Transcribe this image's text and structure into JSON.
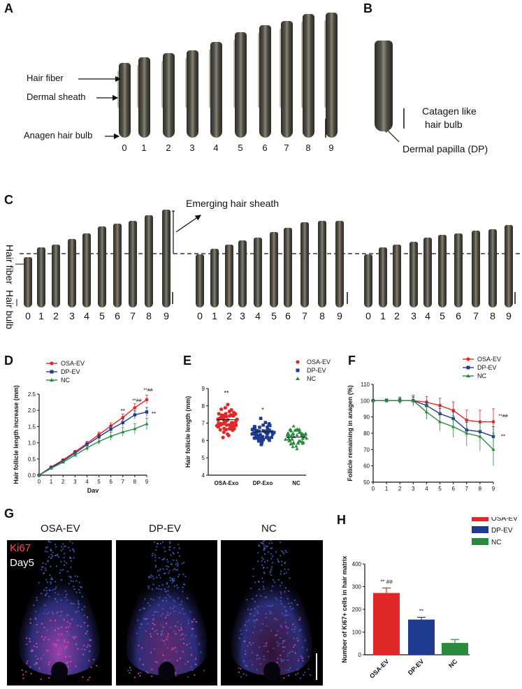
{
  "panels": {
    "A": "A",
    "B": "B",
    "C": "C",
    "D": "D",
    "E": "E",
    "F": "F",
    "G": "G",
    "H": "H"
  },
  "panelA": {
    "labels": [
      "Hair fiber",
      "Dermal sheath",
      "Anagen hair bulb"
    ],
    "day_labels": [
      "0",
      "1",
      "2",
      "3",
      "4",
      "5",
      "6",
      "7",
      "8",
      "9"
    ]
  },
  "panelB": {
    "labels": [
      "Catagen like",
      "hair bulb",
      "Dermal papilla (DP)"
    ]
  },
  "panelC": {
    "emerging_label": "Emerging hair sheath",
    "side_labels": [
      "Hair fiber",
      "Hair bulb"
    ],
    "day_labels": [
      "0",
      "1",
      "2",
      "3",
      "4",
      "5",
      "6",
      "7",
      "8",
      "9"
    ]
  },
  "panelG": {
    "groups": [
      "OSA-EV",
      "DP-EV",
      "NC"
    ],
    "stain": "Ki67",
    "day": "Day5"
  },
  "colors": {
    "osa": "#e02828",
    "dp": "#1f3b8f",
    "nc": "#2a8a3e"
  },
  "chart_data": [
    {
      "panel": "D",
      "type": "line",
      "xlabel": "Day",
      "ylabel": "Hair follicle length increase (mm)",
      "x": [
        0,
        1,
        2,
        3,
        4,
        5,
        6,
        7,
        8,
        9
      ],
      "xlim": [
        0,
        9
      ],
      "ylim": [
        0,
        2.5
      ],
      "yticks": [
        "0.0",
        "0.5",
        "1.0",
        "1.5",
        "2.0",
        "2.5"
      ],
      "series": [
        {
          "name": "OSA-EV",
          "values": [
            0,
            0.25,
            0.47,
            0.72,
            0.98,
            1.25,
            1.52,
            1.78,
            2.08,
            2.33
          ]
        },
        {
          "name": "DP-EV",
          "values": [
            0,
            0.23,
            0.44,
            0.68,
            0.94,
            1.18,
            1.42,
            1.62,
            1.86,
            1.95
          ]
        },
        {
          "name": "NC",
          "values": [
            0,
            0.21,
            0.4,
            0.62,
            0.84,
            1.04,
            1.2,
            1.33,
            1.43,
            1.58
          ]
        }
      ],
      "annotations": [
        "**",
        "**##",
        "**##",
        "**"
      ]
    },
    {
      "panel": "E",
      "type": "scatter",
      "ylabel": "Hair follicle length (mm)",
      "categories": [
        "OSA-Exo",
        "DP-Exo",
        "NC"
      ],
      "ylim": [
        4,
        9
      ],
      "yticks": [
        "4",
        "5",
        "6",
        "7",
        "8",
        "9"
      ],
      "means": [
        7.2,
        6.5,
        6.2
      ],
      "spreads": [
        0.65,
        0.5,
        0.45
      ],
      "annotations": [
        "**",
        "*",
        ""
      ],
      "legend": [
        "OSA-EV",
        "DP-EV",
        "NC"
      ]
    },
    {
      "panel": "F",
      "type": "line",
      "xlabel": "Day",
      "ylabel": "Follicle remaining in anagen (%)",
      "x": [
        0,
        1,
        2,
        3,
        4,
        5,
        6,
        7,
        8,
        9
      ],
      "xlim": [
        0,
        9
      ],
      "ylim": [
        50,
        110
      ],
      "yticks": [
        "50",
        "60",
        "70",
        "80",
        "90",
        "100",
        "110"
      ],
      "series": [
        {
          "name": "OSA-EV",
          "values": [
            100,
            100,
            100,
            100,
            99,
            97,
            94,
            88,
            87,
            87
          ]
        },
        {
          "name": "DP-EV",
          "values": [
            100,
            100,
            100,
            100,
            97,
            92,
            89,
            82,
            81,
            78
          ]
        },
        {
          "name": "NC",
          "values": [
            100,
            100,
            100,
            100,
            93,
            87,
            84,
            80,
            78,
            70
          ]
        }
      ],
      "annotations": [
        "**##",
        "**"
      ]
    },
    {
      "panel": "H",
      "type": "bar",
      "ylabel": "Number of Ki67+ cells in hair matrix",
      "categories": [
        "OSA-EV",
        "DP-EV",
        "NC"
      ],
      "values": [
        272,
        155,
        52
      ],
      "errors": [
        22,
        10,
        15
      ],
      "ylim": [
        0,
        400
      ],
      "yticks": [
        "0",
        "100",
        "200",
        "300",
        "400"
      ],
      "annotations": [
        "** ##",
        "**",
        ""
      ],
      "legend": [
        "OSA-EV",
        "DP-EV",
        "NC"
      ]
    }
  ]
}
